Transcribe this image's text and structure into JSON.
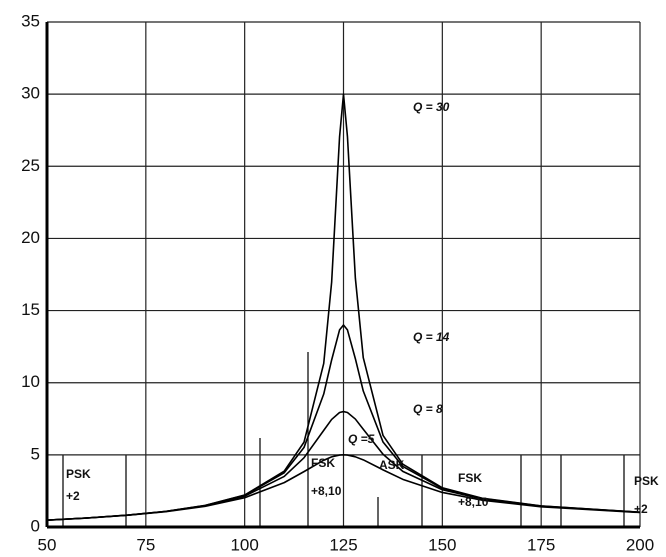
{
  "chart_data": {
    "type": "line",
    "x": [
      50,
      60,
      70,
      80,
      90,
      100,
      110,
      115,
      120,
      122,
      124,
      125,
      126,
      128,
      130,
      135,
      140,
      150,
      160,
      175,
      200
    ],
    "series": [
      {
        "name": "Q = 30",
        "color": "#000000",
        "values": [
          0.476,
          0.624,
          0.816,
          1.083,
          1.493,
          2.216,
          3.868,
          5.873,
          11.336,
          16.97,
          27.03,
          30,
          27.06,
          17.25,
          11.731,
          6.344,
          4.356,
          2.716,
          2.001,
          1.457,
          1.025
        ]
      },
      {
        "name": "Q = 14",
        "color": "#000000",
        "values": [
          0.476,
          0.623,
          0.814,
          1.081,
          1.487,
          2.195,
          3.757,
          5.507,
          9.217,
          11.575,
          13.66,
          14,
          13.66,
          11.662,
          9.425,
          5.889,
          4.2,
          2.677,
          1.985,
          1.45,
          1.023
        ]
      },
      {
        "name": "Q = 8",
        "color": "#000000",
        "values": [
          0.475,
          0.622,
          0.812,
          1.074,
          1.47,
          2.141,
          3.506,
          4.794,
          6.697,
          7.456,
          7.935,
          8,
          7.936,
          7.48,
          6.776,
          5.041,
          3.857,
          2.581,
          1.945,
          1.435,
          1.017
        ]
      },
      {
        "name": "Q =5",
        "color": "#000000",
        "values": [
          0.474,
          0.619,
          0.805,
          1.059,
          1.432,
          2.031,
          3.075,
          3.838,
          4.629,
          4.859,
          4.984,
          5,
          4.984,
          4.865,
          4.655,
          3.961,
          3.304,
          2.394,
          1.861,
          1.4,
          1.005
        ]
      }
    ],
    "xlim": [
      50,
      200
    ],
    "ylim": [
      0,
      35
    ],
    "xticks": [
      50,
      75,
      100,
      125,
      150,
      175,
      200
    ],
    "yticks": [
      0,
      5,
      10,
      15,
      20,
      25,
      30,
      35
    ],
    "grid": true,
    "annotations": [
      "PSK",
      "+2",
      "FSK",
      "+8,10",
      "ASK",
      "FSK",
      "+8,10",
      "PSK",
      "+2"
    ]
  }
}
